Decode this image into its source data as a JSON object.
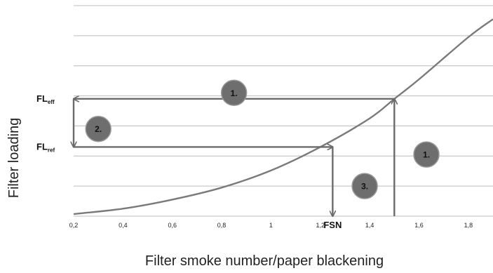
{
  "chart_data": {
    "type": "line",
    "title": "",
    "xlabel": "Filter smoke number/paper blackening",
    "ylabel": "Filter loading",
    "xlim": [
      0.2,
      1.9
    ],
    "ylim": [
      0,
      7
    ],
    "x_ticks": [
      "0,2",
      "0,4",
      "0,6",
      "0,8",
      "1",
      "1,2",
      "1,4",
      "1,6",
      "1,8"
    ],
    "x_tick_values": [
      0.2,
      0.4,
      0.6,
      0.8,
      1.0,
      1.2,
      1.4,
      1.6,
      1.8
    ],
    "y_gridlines": [
      1,
      2,
      3,
      4,
      5,
      6,
      7
    ],
    "grid": "horizontal",
    "series": [
      {
        "color": "#7a7a7a",
        "x": [
          0.2,
          0.4,
          0.6,
          0.8,
          1.0,
          1.2,
          1.4,
          1.5,
          1.6,
          1.8,
          1.9
        ],
        "y": [
          0.07,
          0.25,
          0.55,
          0.95,
          1.52,
          2.3,
          3.25,
          3.9,
          4.55,
          5.95,
          6.55
        ]
      }
    ],
    "annotations": {
      "fl_eff": {
        "main": "FL",
        "sub": "eff",
        "y": 3.9
      },
      "fl_ref": {
        "main": "FL",
        "sub": "ref",
        "y": 2.3
      },
      "fsn": {
        "label": "FSN",
        "x": 1.25
      },
      "badge_color": "#6e6e6e",
      "badges": [
        {
          "label": "1.",
          "x": 0.85,
          "y": 4.1
        },
        {
          "label": "2.",
          "x": 0.3,
          "y": 2.9
        },
        {
          "label": "3.",
          "x": 1.38,
          "y": 1.0
        },
        {
          "label": "1.",
          "x": 1.63,
          "y": 2.05
        }
      ],
      "arrows": [
        {
          "from": [
            1.5,
            0
          ],
          "to": [
            1.5,
            3.9
          ]
        },
        {
          "from": [
            1.5,
            3.9
          ],
          "to": [
            0.2,
            3.9
          ]
        },
        {
          "from": [
            0.2,
            3.9
          ],
          "to": [
            0.2,
            2.3
          ]
        },
        {
          "from": [
            0.2,
            2.3
          ],
          "to": [
            1.25,
            2.3
          ]
        },
        {
          "from": [
            1.25,
            2.3
          ],
          "to": [
            1.25,
            0
          ]
        }
      ]
    }
  }
}
